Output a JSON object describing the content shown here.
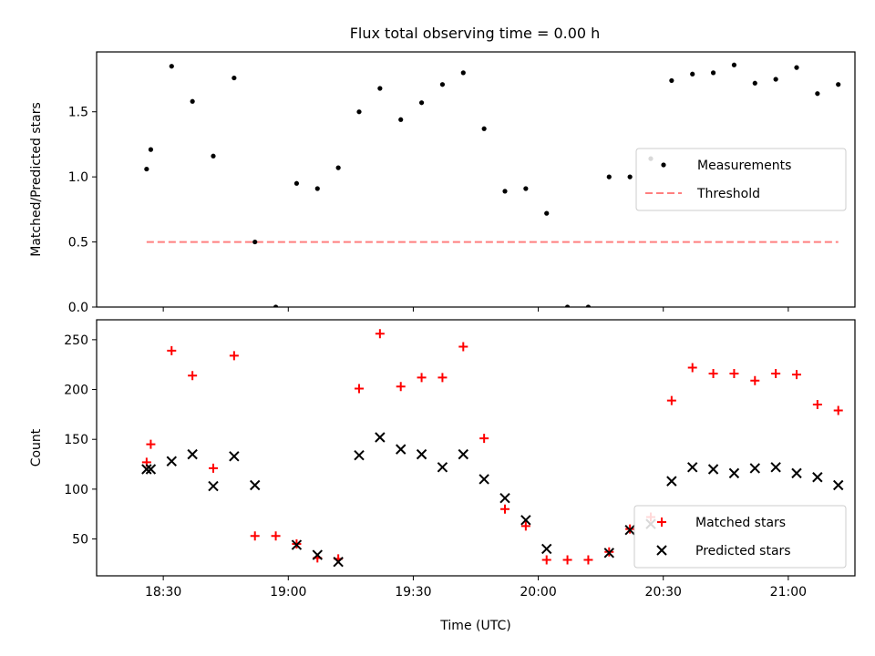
{
  "title": "Flux total observing time = 0.00 h",
  "chart_data": [
    {
      "type": "scatter",
      "title": "Flux total observing time = 0.00 h",
      "ylabel": "Matched/Predicted stars",
      "ylim": [
        0,
        1.96
      ],
      "yticks": [
        "0.0",
        "0.5",
        "1.0",
        "1.5"
      ],
      "ytick_values": [
        0.0,
        0.5,
        1.0,
        1.5
      ],
      "xlim_minutes": [
        1094,
        1276
      ],
      "series": [
        {
          "name": "Measurements",
          "kind": "points",
          "color": "#000000",
          "x": [
            "18:26",
            "18:27",
            "18:32",
            "18:37",
            "18:42",
            "18:47",
            "18:52",
            "18:57",
            "19:02",
            "19:07",
            "19:12",
            "19:17",
            "19:22",
            "19:27",
            "19:32",
            "19:37",
            "19:42",
            "19:47",
            "19:52",
            "19:57",
            "20:02",
            "20:07",
            "20:12",
            "20:17",
            "20:22",
            "20:27",
            "20:32",
            "20:37",
            "20:42",
            "20:47",
            "20:52",
            "20:57",
            "21:02",
            "21:07",
            "21:12"
          ],
          "y": [
            1.06,
            1.21,
            1.85,
            1.58,
            1.16,
            1.76,
            0.5,
            0.0,
            0.95,
            0.91,
            1.07,
            1.5,
            1.68,
            1.44,
            1.57,
            1.71,
            1.8,
            1.37,
            0.89,
            0.91,
            0.72,
            0.0,
            0.0,
            1.0,
            1.0,
            1.14,
            1.74,
            1.79,
            1.8,
            1.86,
            1.72,
            1.75,
            1.84,
            1.64,
            1.71
          ]
        },
        {
          "name": "Threshold",
          "kind": "dashed-line",
          "color": "#ff7f7f",
          "x": [
            "18:26",
            "21:12"
          ],
          "y": [
            0.5,
            0.5
          ]
        }
      ],
      "legend": "right"
    },
    {
      "type": "scatter",
      "xlabel": "Time (UTC)",
      "ylabel": "Count",
      "ylim": [
        13,
        270
      ],
      "yticks": [
        "50",
        "100",
        "150",
        "200",
        "250"
      ],
      "ytick_values": [
        50,
        100,
        150,
        200,
        250
      ],
      "xticks": [
        "18:30",
        "19:00",
        "19:30",
        "20:00",
        "20:30",
        "21:00"
      ],
      "xlim_minutes": [
        1094,
        1276
      ],
      "series": [
        {
          "name": "Matched stars",
          "kind": "plus",
          "color": "#ff0000",
          "x": [
            "18:26",
            "18:27",
            "18:32",
            "18:37",
            "18:42",
            "18:47",
            "18:52",
            "18:57",
            "19:02",
            "19:07",
            "19:12",
            "19:17",
            "19:22",
            "19:27",
            "19:32",
            "19:37",
            "19:42",
            "19:47",
            "19:52",
            "19:57",
            "20:02",
            "20:07",
            "20:12",
            "20:17",
            "20:22",
            "20:27",
            "20:32",
            "20:37",
            "20:42",
            "20:47",
            "20:52",
            "20:57",
            "21:02",
            "21:07",
            "21:12"
          ],
          "y": [
            127,
            145,
            239,
            214,
            121,
            234,
            53,
            53,
            45,
            31,
            30,
            201,
            256,
            203,
            212,
            212,
            243,
            151,
            80,
            63,
            29,
            29,
            29,
            37,
            60,
            72,
            189,
            222,
            216,
            216,
            209,
            216,
            215,
            185,
            179
          ]
        },
        {
          "name": "Predicted stars",
          "kind": "cross",
          "color": "#000000",
          "x": [
            "18:26",
            "18:27",
            "18:32",
            "18:37",
            "18:42",
            "18:47",
            "18:52",
            "19:02",
            "19:07",
            "19:12",
            "19:17",
            "19:22",
            "19:27",
            "19:32",
            "19:37",
            "19:42",
            "19:47",
            "19:52",
            "19:57",
            "20:02",
            "20:17",
            "20:22",
            "20:27",
            "20:32",
            "20:37",
            "20:42",
            "20:47",
            "20:52",
            "20:57",
            "21:02",
            "21:07",
            "21:12"
          ],
          "y": [
            120,
            120,
            128,
            135,
            103,
            133,
            104,
            44,
            34,
            27,
            134,
            152,
            140,
            135,
            122,
            135,
            110,
            91,
            69,
            40,
            36,
            59,
            65,
            108,
            122,
            120,
            116,
            121,
            122,
            116,
            112,
            104
          ]
        }
      ],
      "legend": "lower right"
    }
  ]
}
